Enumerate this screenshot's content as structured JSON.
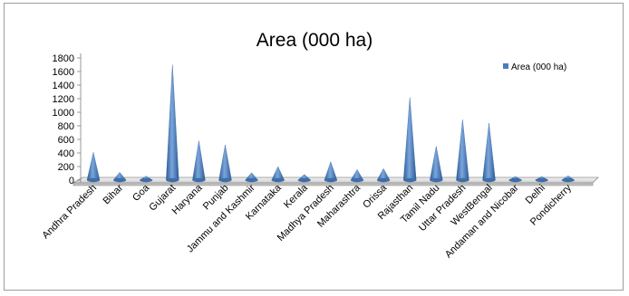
{
  "chart_data": {
    "type": "bar",
    "title": "Area (000 ha)",
    "legend": {
      "position": "right"
    },
    "categories": [
      "Andhra Pradesh",
      "Bihar",
      "Goa",
      "Gujarat",
      "Haryana",
      "Punjab",
      "Jammu and Kashmir",
      "Karnataka",
      "Kerala",
      "Madhya Pradesh",
      "Maharashtra",
      "Orissa",
      "Rajasthan",
      "Tamil Nadu",
      "Uttar Pradesh",
      "WestBengal",
      "Andaman and Nicobar",
      "Delhi",
      "Pondicherry"
    ],
    "series": [
      {
        "name": "Area (000 ha)",
        "color": "#4a7ebb",
        "values": [
          370,
          75,
          20,
          1660,
          540,
          480,
          70,
          160,
          45,
          230,
          115,
          130,
          1180,
          460,
          850,
          800,
          15,
          15,
          25
        ]
      }
    ],
    "ylim": [
      0,
      1800
    ],
    "yticks": [
      "0",
      "200",
      "400",
      "600",
      "800",
      "1000",
      "1200",
      "1400",
      "1600",
      "1800"
    ],
    "grid": false
  }
}
